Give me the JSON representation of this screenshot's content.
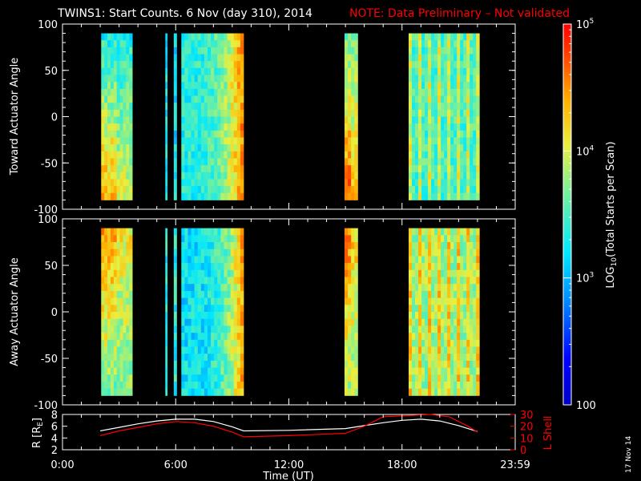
{
  "header": {
    "title": "TWINS1: Start Counts.  6 Nov (day 310), 2014",
    "note": "NOTE: Data Preliminary – Not validated",
    "note_color": "#ff0000"
  },
  "side_date": "17 Nov 14",
  "colors": {
    "frame": "#ffffff",
    "background": "#000000",
    "l_shell_color": "#ff0000",
    "r_color": "#ffffff"
  },
  "chart_data": [
    {
      "type": "heatmap",
      "name": "toward",
      "ylabel": "Toward Actuator Angle",
      "ylim": [
        -100,
        100
      ],
      "yticks": [
        "100",
        "50",
        "0",
        "-50",
        "-100"
      ],
      "ytick_values": [
        100,
        50,
        0,
        -50,
        -100
      ],
      "xlim": [
        0,
        24
      ],
      "data_extent_deg": [
        -90,
        90
      ],
      "blocks": [
        {
          "start": 2.05,
          "end": 3.7,
          "log_level": 0.45
        },
        {
          "start": 5.45,
          "end": 5.55,
          "log_level": 0.42
        },
        {
          "start": 5.9,
          "end": 6.05,
          "log_level": 0.4
        },
        {
          "start": 6.3,
          "end": 9.6,
          "log_level": 0.45
        },
        {
          "start": 14.95,
          "end": 15.65,
          "log_level": 0.55
        },
        {
          "start": 18.35,
          "end": 22.1,
          "log_level": 0.5
        }
      ]
    },
    {
      "type": "heatmap",
      "name": "away",
      "ylabel": "Away Actuator Angle",
      "ylim": [
        -100,
        100
      ],
      "yticks": [
        "100",
        "50",
        "0",
        "-50",
        "-100"
      ],
      "ytick_values": [
        100,
        50,
        0,
        -50,
        -100
      ],
      "xlim": [
        0,
        24
      ],
      "data_extent_deg": [
        -90,
        90
      ],
      "blocks": [
        {
          "start": 2.05,
          "end": 3.7,
          "log_level": 0.55
        },
        {
          "start": 5.45,
          "end": 5.55,
          "log_level": 0.45
        },
        {
          "start": 5.9,
          "end": 6.05,
          "log_level": 0.45
        },
        {
          "start": 6.3,
          "end": 9.6,
          "log_level": 0.4
        },
        {
          "start": 14.95,
          "end": 15.65,
          "log_level": 0.6
        },
        {
          "start": 18.35,
          "end": 22.1,
          "log_level": 0.6
        }
      ]
    },
    {
      "type": "line",
      "name": "orbit",
      "ylabel": "R [R",
      "ylabel_sub": "E",
      "ylabel_end": "]",
      "y2label": "L Shell",
      "ylim": [
        2,
        8
      ],
      "yticks": [
        "8",
        "6",
        "4",
        "2"
      ],
      "ytick_values": [
        8,
        6,
        4,
        2
      ],
      "y2lim": [
        0,
        30
      ],
      "y2ticks": [
        "30",
        "20",
        "10",
        "0"
      ],
      "y2tick_values": [
        30,
        20,
        10,
        0
      ],
      "xlim": [
        0,
        24
      ],
      "xticks": [
        "0:00",
        "6:00",
        "12:00",
        "18:00",
        "23:59"
      ],
      "xtick_values": [
        0,
        6,
        12,
        18,
        24
      ],
      "xlabel": "Time (UT)",
      "series": [
        {
          "name": "R",
          "axis": "left",
          "x": [
            2.0,
            3.0,
            4.0,
            5.0,
            6.0,
            7.0,
            8.0,
            9.0,
            9.6,
            12.0,
            15.0,
            16.0,
            17.0,
            18.0,
            19.0,
            20.0,
            21.0,
            22.0
          ],
          "values": [
            5.2,
            5.8,
            6.4,
            6.9,
            7.2,
            7.2,
            6.8,
            5.9,
            5.2,
            5.3,
            5.6,
            6.1,
            6.6,
            7.0,
            7.2,
            6.9,
            6.1,
            5.1
          ]
        },
        {
          "name": "L Shell",
          "axis": "right",
          "x": [
            2.0,
            3.0,
            4.0,
            5.0,
            6.0,
            7.0,
            8.0,
            9.0,
            9.6,
            12.0,
            15.0,
            16.0,
            17.0,
            19.5,
            20.5,
            21.5,
            22.0
          ],
          "values": [
            12,
            16,
            19,
            22,
            24,
            23,
            20,
            15,
            11,
            12,
            14,
            20,
            28,
            30,
            28,
            20,
            15
          ]
        }
      ]
    }
  ],
  "colorbar": {
    "label_prefix": "LOG",
    "label_sub": "10",
    "label_rest": "(Total Starts per Scan)",
    "ticks": [
      {
        "base": "10",
        "exp": "5",
        "value": 100000
      },
      {
        "base": "10",
        "exp": "4",
        "value": 10000
      },
      {
        "base": "10",
        "exp": "3",
        "value": 1000
      },
      {
        "base": "100",
        "exp": "",
        "value": 100
      }
    ]
  }
}
